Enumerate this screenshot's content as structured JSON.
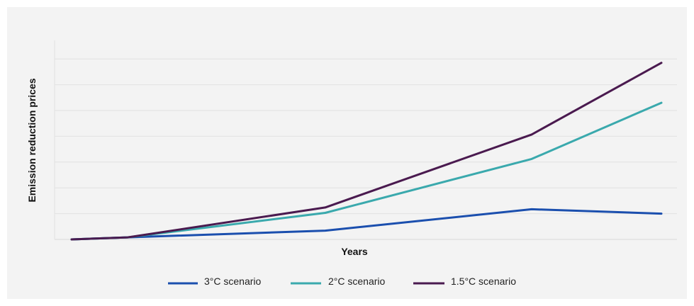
{
  "chart_data": {
    "type": "line",
    "title": "",
    "xlabel": "Years",
    "ylabel": "Emission reduction prices",
    "x": [
      0,
      1,
      2,
      3,
      4
    ],
    "ylim": [
      0,
      7
    ],
    "grid": true,
    "legend_placement": "bottom",
    "series": [
      {
        "name": "3°C scenario",
        "color": "#1b4fae",
        "values": [
          0,
          0.08,
          0.34,
          1.17,
          1.0
        ]
      },
      {
        "name": "2°C scenario",
        "color": "#3aa9ad",
        "values": [
          0,
          0.08,
          1.03,
          3.12,
          5.3
        ]
      },
      {
        "name": "1.5°C scenario",
        "color": "#4a1a4f",
        "values": [
          0,
          0.08,
          1.24,
          4.07,
          6.85
        ]
      }
    ],
    "x_positions": [
      0,
      0.1,
      0.43,
      0.78,
      1.0
    ]
  }
}
